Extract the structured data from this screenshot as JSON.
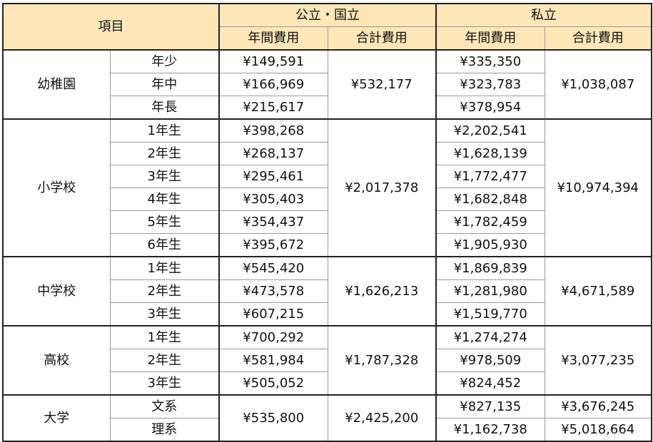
{
  "header": {
    "item": "項目",
    "public": "公立・国立",
    "private": "私立",
    "annual": "年間費用",
    "total": "合計費用"
  },
  "groups": [
    {
      "name": "幼稚園",
      "public_total": "¥532,177",
      "private_total": "¥1,038,087",
      "rows": [
        {
          "label": "年少",
          "public": "¥149,591",
          "private": "¥335,350"
        },
        {
          "label": "年中",
          "public": "¥166,969",
          "private": "¥323,783"
        },
        {
          "label": "年長",
          "public": "¥215,617",
          "private": "¥378,954"
        }
      ]
    },
    {
      "name": "小学校",
      "public_total": "¥2,017,378",
      "private_total": "¥10,974,394",
      "rows": [
        {
          "label": "1年生",
          "public": "¥398,268",
          "private": "¥2,202,541"
        },
        {
          "label": "2年生",
          "public": "¥268,137",
          "private": "¥1,628,139"
        },
        {
          "label": "3年生",
          "public": "¥295,461",
          "private": "¥1,772,477"
        },
        {
          "label": "4年生",
          "public": "¥305,403",
          "private": "¥1,682,848"
        },
        {
          "label": "5年生",
          "public": "¥354,437",
          "private": "¥1,782,459"
        },
        {
          "label": "6年生",
          "public": "¥395,672",
          "private": "¥1,905,930"
        }
      ]
    },
    {
      "name": "中学校",
      "public_total": "¥1,626,213",
      "private_total": "¥4,671,589",
      "rows": [
        {
          "label": "1年生",
          "public": "¥545,420",
          "private": "¥1,869,839"
        },
        {
          "label": "2年生",
          "public": "¥473,578",
          "private": "¥1,281,980"
        },
        {
          "label": "3年生",
          "public": "¥607,215",
          "private": "¥1,519,770"
        }
      ]
    },
    {
      "name": "高校",
      "public_total": "¥1,787,328",
      "private_total": "¥3,077,235",
      "rows": [
        {
          "label": "1年生",
          "public": "¥700,292",
          "private": "¥1,274,274"
        },
        {
          "label": "2年生",
          "public": "¥581,984",
          "private": "¥978,509"
        },
        {
          "label": "3年生",
          "public": "¥505,052",
          "private": "¥824,452"
        }
      ]
    }
  ],
  "university": {
    "name": "大学",
    "public_annual": "¥535,800",
    "public_total": "¥2,425,200",
    "rows": [
      {
        "label": "文系",
        "private": "¥827,135",
        "private_total": "¥3,676,245"
      },
      {
        "label": "理系",
        "private": "¥1,162,738",
        "private_total": "¥5,018,664"
      }
    ]
  }
}
